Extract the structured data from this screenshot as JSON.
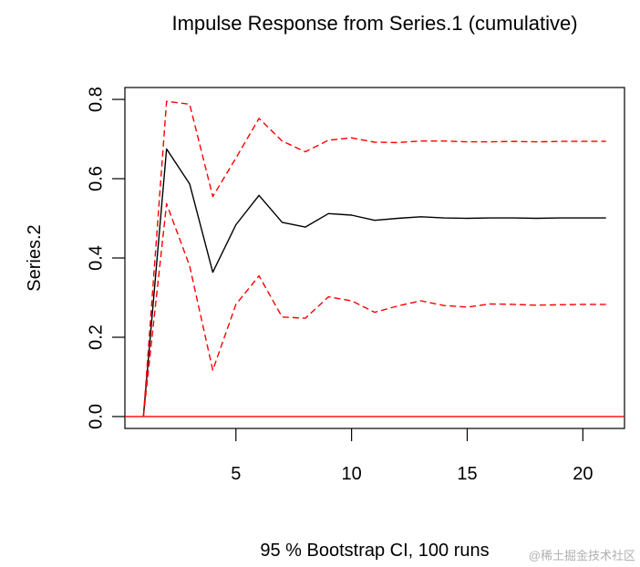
{
  "chart_data": {
    "type": "line",
    "title": "Impulse Response from Series.1 (cumulative)",
    "xlabel": "95 % Bootstrap CI, 100 runs",
    "ylabel": "Series.2",
    "xlim": [
      0.2,
      21.8
    ],
    "ylim": [
      -0.03,
      0.83
    ],
    "x_ticks": [
      5,
      10,
      15,
      20
    ],
    "y_ticks": [
      0.0,
      0.2,
      0.4,
      0.6,
      0.8
    ],
    "x_tick_labels": [
      "5",
      "10",
      "15",
      "20"
    ],
    "y_tick_labels": [
      "0.0",
      "0.2",
      "0.4",
      "0.6",
      "0.8"
    ],
    "grid": false,
    "reference_line": {
      "y": 0.0,
      "color": "#ff0000"
    },
    "x": [
      1,
      2,
      3,
      4,
      5,
      6,
      7,
      8,
      9,
      10,
      11,
      12,
      13,
      14,
      15,
      16,
      17,
      18,
      19,
      20,
      21
    ],
    "series": [
      {
        "role": "response",
        "color": "#000000",
        "dash": "solid",
        "values": [
          0.0,
          0.675,
          0.587,
          0.364,
          0.484,
          0.558,
          0.49,
          0.478,
          0.512,
          0.508,
          0.495,
          0.5,
          0.504,
          0.501,
          0.5,
          0.501,
          0.501,
          0.5,
          0.501,
          0.501,
          0.501
        ]
      },
      {
        "role": "upper-ci",
        "color": "#ff0000",
        "dash": "dashed",
        "values": [
          0.0,
          0.795,
          0.788,
          0.555,
          0.652,
          0.752,
          0.695,
          0.668,
          0.697,
          0.703,
          0.692,
          0.691,
          0.695,
          0.695,
          0.693,
          0.693,
          0.694,
          0.693,
          0.694,
          0.694,
          0.694
        ]
      },
      {
        "role": "lower-ci",
        "color": "#ff0000",
        "dash": "dashed",
        "values": [
          0.0,
          0.537,
          0.38,
          0.117,
          0.283,
          0.355,
          0.251,
          0.248,
          0.302,
          0.292,
          0.263,
          0.279,
          0.292,
          0.28,
          0.276,
          0.284,
          0.283,
          0.281,
          0.282,
          0.283,
          0.283
        ]
      }
    ]
  },
  "watermark": "@稀土掘金技术社区"
}
